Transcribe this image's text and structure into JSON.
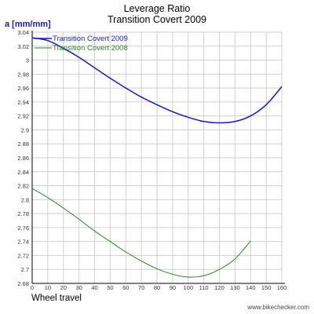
{
  "header": {
    "title_line1": "Leverage Ratio",
    "title_line2": "Transition Covert 2009"
  },
  "watermark": "www.bikechecker.com",
  "chart_data": {
    "type": "line",
    "title": "Leverage Ratio Transition Covert 2009",
    "xlabel": "Wheel travel",
    "ylabel": "a [mm/mm]",
    "xlim": [
      0,
      160
    ],
    "ylim": [
      2.68,
      3.04
    ],
    "x_ticks": [
      0,
      10,
      20,
      30,
      40,
      50,
      60,
      70,
      80,
      90,
      100,
      110,
      120,
      130,
      140,
      150,
      160
    ],
    "x_tick_labels": [
      "0",
      "10",
      "20",
      "30",
      "40",
      "50",
      "60",
      "70",
      "80",
      "90",
      "100",
      "110",
      "120",
      "130",
      "140",
      "150",
      "160"
    ],
    "y_ticks": [
      2.68,
      2.7,
      2.72,
      2.74,
      2.76,
      2.78,
      2.8,
      2.82,
      2.84,
      2.86,
      2.88,
      2.9,
      2.92,
      2.94,
      2.96,
      2.98,
      3,
      3.02,
      3.04
    ],
    "y_tick_labels": [
      "2.68",
      "2.7",
      "2.72",
      "2.74",
      "2.76",
      "2.78",
      "2.8",
      "2.82",
      "2.84",
      "2.86",
      "2.88",
      "2.9",
      "2.92",
      "2.94",
      "2.96",
      "2.98",
      "3",
      "3.02",
      "3.04"
    ],
    "grid": true,
    "legend": "top-left",
    "series": [
      {
        "name": "Transition Covert 2009",
        "color": "#1a1aa0",
        "x": [
          0,
          10,
          20,
          30,
          40,
          50,
          60,
          70,
          80,
          90,
          100,
          110,
          120,
          130,
          140,
          150,
          160
        ],
        "y": [
          3.032,
          3.028,
          3.017,
          3.004,
          2.989,
          2.974,
          2.96,
          2.947,
          2.936,
          2.926,
          2.918,
          2.912,
          2.91,
          2.912,
          2.92,
          2.936,
          2.962
        ]
      },
      {
        "name": "Transition Covert 2008",
        "color": "#2e7d2e",
        "x": [
          0,
          10,
          20,
          30,
          40,
          50,
          60,
          70,
          80,
          90,
          100,
          110,
          120,
          130,
          140
        ],
        "y": [
          2.816,
          2.803,
          2.788,
          2.772,
          2.755,
          2.74,
          2.725,
          2.712,
          2.701,
          2.693,
          2.689,
          2.691,
          2.7,
          2.715,
          2.741
        ]
      }
    ]
  }
}
